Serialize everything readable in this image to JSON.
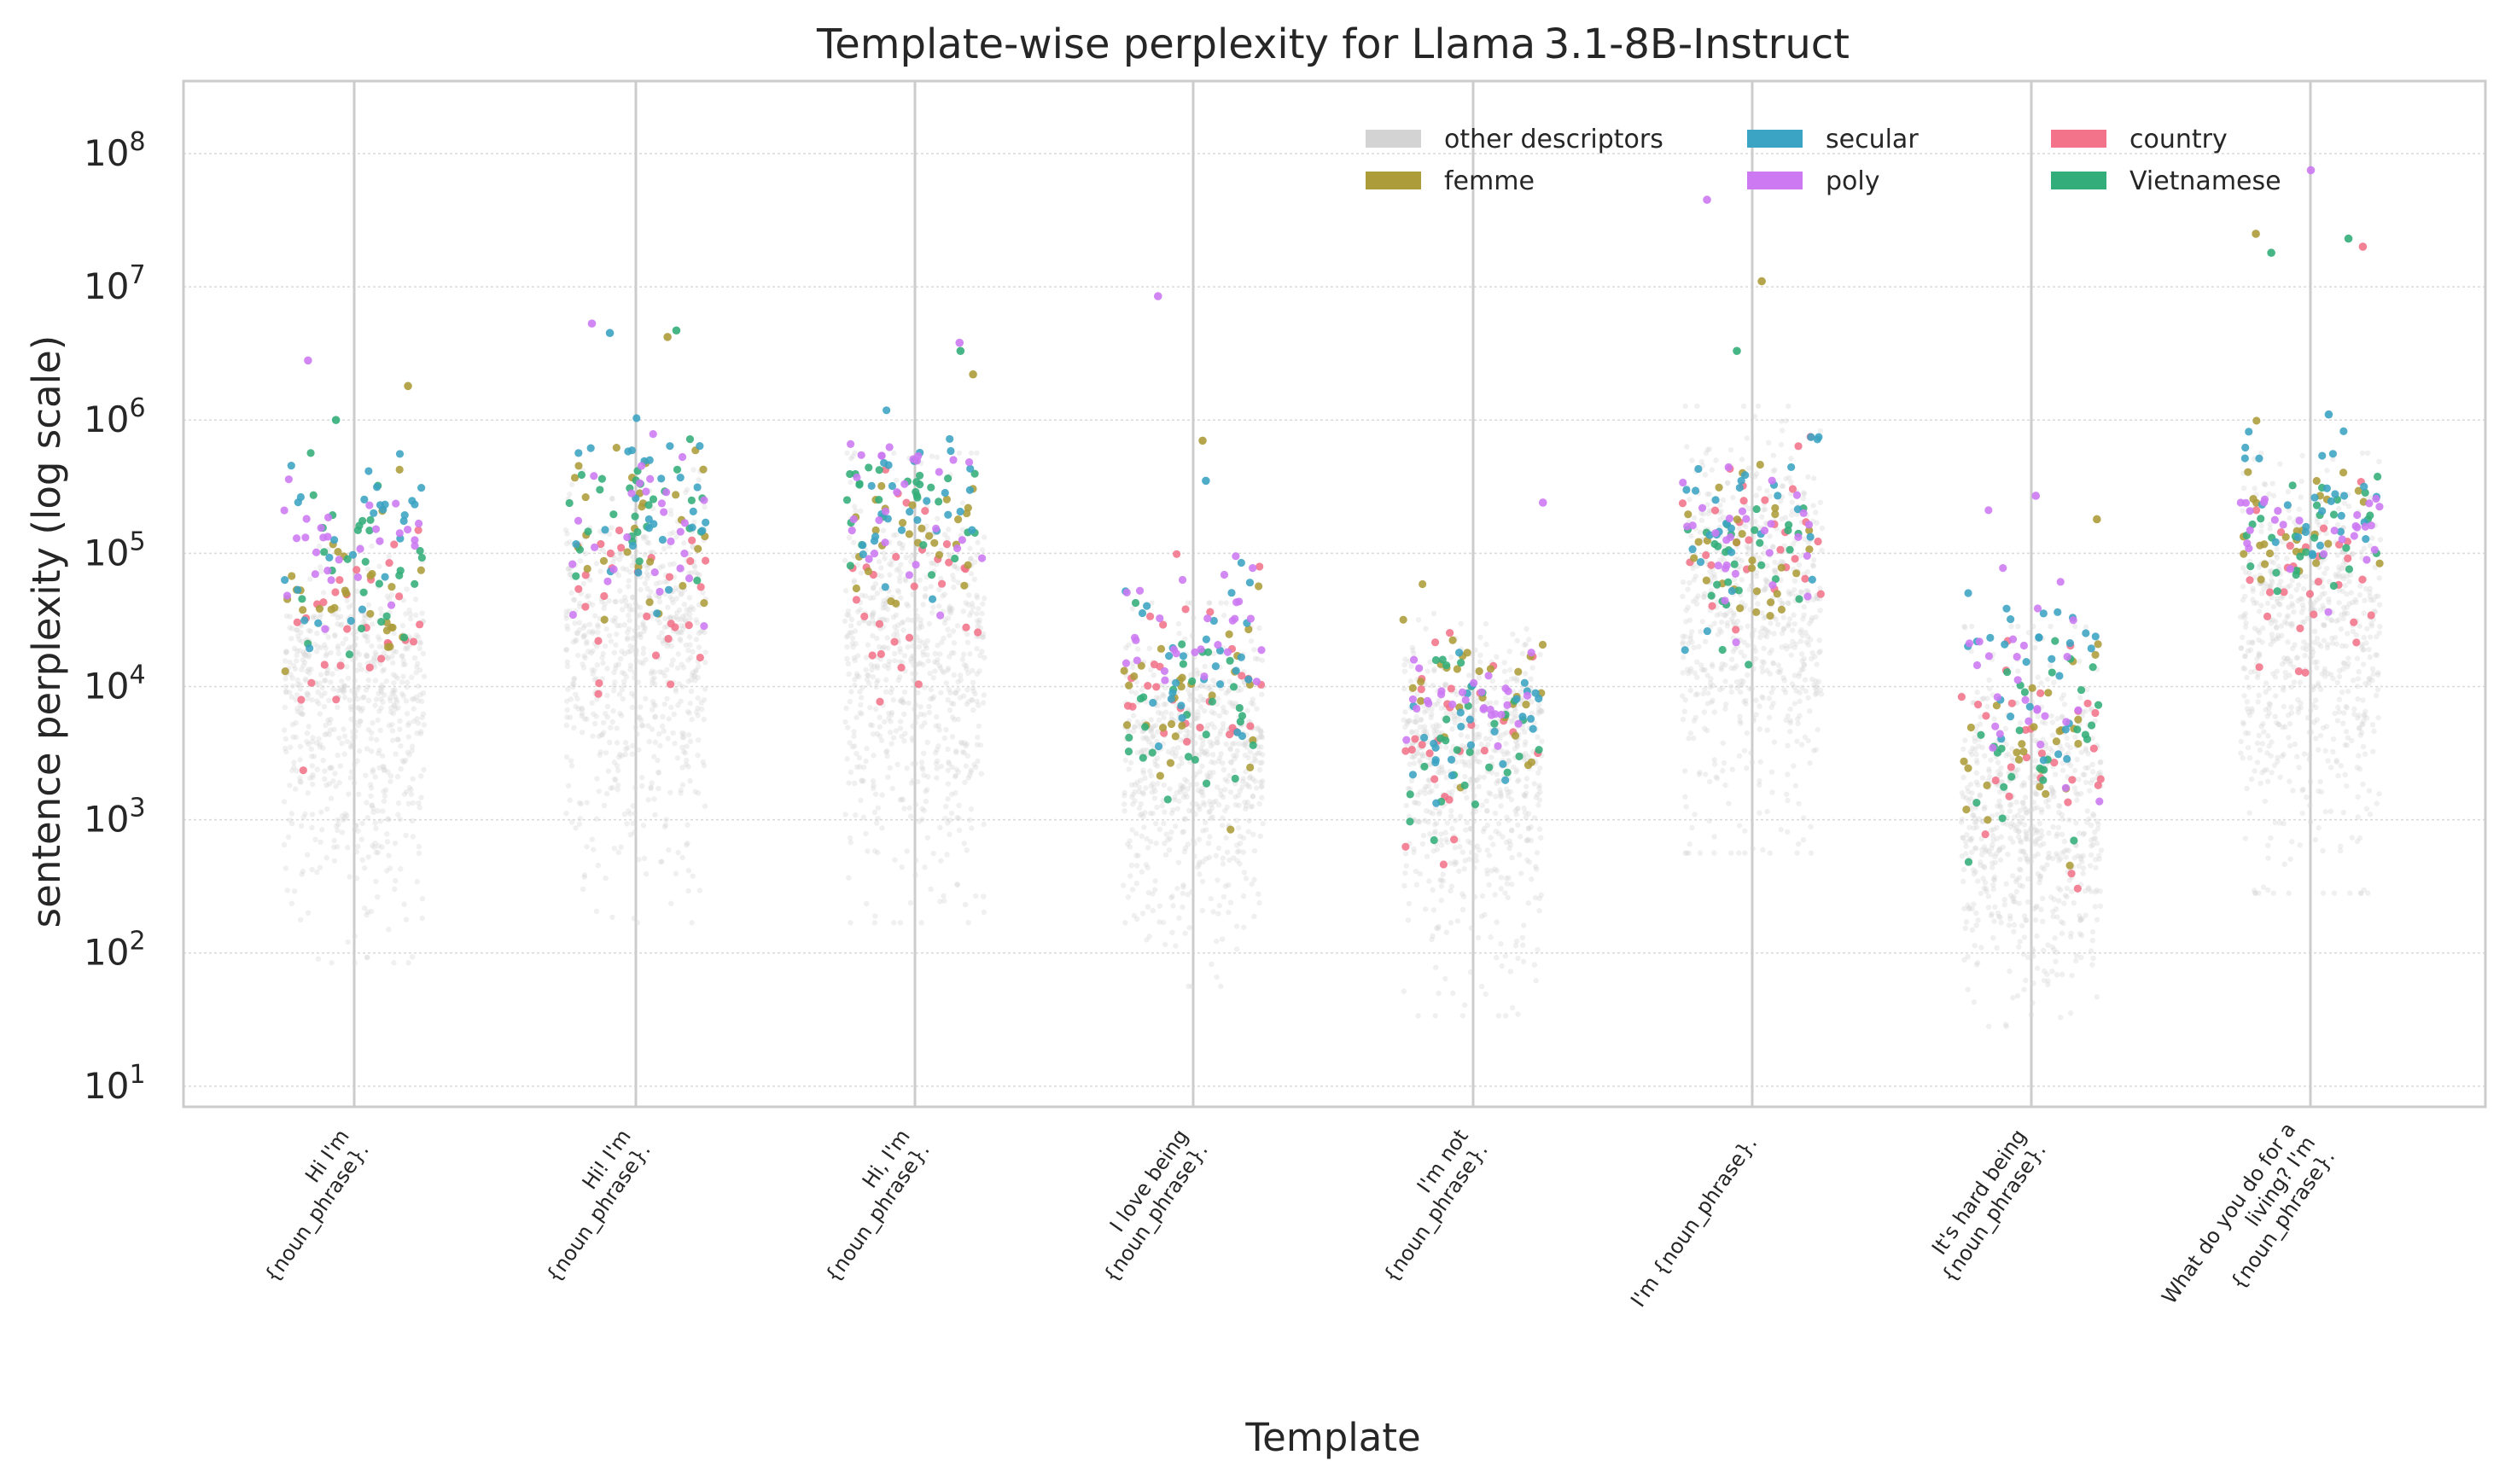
{
  "chart_data": {
    "type": "scatter",
    "title": "Template-wise perplexity for Llama 3.1-8B-Instruct",
    "xlabel": "Template",
    "ylabel": "sentence perplexity (log scale)",
    "yscale": "log",
    "ylim": [
      7,
      350000000
    ],
    "yticks": [
      10,
      100,
      1000,
      10000,
      100000,
      1000000,
      10000000,
      100000000
    ],
    "ytick_labels": [
      {
        "base": "10",
        "exp": "1"
      },
      {
        "base": "10",
        "exp": "2"
      },
      {
        "base": "10",
        "exp": "3"
      },
      {
        "base": "10",
        "exp": "4"
      },
      {
        "base": "10",
        "exp": "5"
      },
      {
        "base": "10",
        "exp": "6"
      },
      {
        "base": "10",
        "exp": "7"
      },
      {
        "base": "10",
        "exp": "8"
      }
    ],
    "grid": true,
    "legend_position": "top-right",
    "categories": [
      [
        "Hi I'm",
        "{noun_phrase}."
      ],
      [
        "Hi! I'm",
        "{noun_phrase}."
      ],
      [
        "Hi, I'm",
        "{noun_phrase}."
      ],
      [
        "I love being",
        "{noun_phrase}."
      ],
      [
        "I'm not",
        "{noun_phrase}."
      ],
      [
        "I'm {noun_phrase}."
      ],
      [
        "It's hard being",
        "{noun_phrase}."
      ],
      [
        "What do you do for a",
        "living? I'm",
        "{noun_phrase}."
      ]
    ],
    "legend": [
      {
        "name": "other descriptors",
        "color": "#d3d3d3"
      },
      {
        "name": "femme",
        "color": "#ad9c3a"
      },
      {
        "name": "secular",
        "color": "#3ba3c3"
      },
      {
        "name": "poly",
        "color": "#cc79f2"
      },
      {
        "name": "country",
        "color": "#f2738a"
      },
      {
        "name": "Vietnamese",
        "color": "#33ae7a"
      }
    ],
    "distributions": [
      {
        "background": {
          "median": 8000,
          "low": 150,
          "high": 80000
        },
        "series": {
          "country": {
            "median": 25000,
            "low": 4000,
            "high": 350000
          },
          "femme": {
            "median": 45000,
            "low": 12000,
            "high": 300000
          },
          "secular": {
            "median": 130000,
            "low": 12000,
            "high": 600000
          },
          "poly": {
            "median": 120000,
            "low": 20000,
            "high": 400000
          },
          "Vietnamese": {
            "median": 90000,
            "low": 13000,
            "high": 400000
          }
        },
        "outliers": [
          {
            "series": "femme",
            "y": 1800000
          },
          {
            "series": "poly",
            "y": 2800000
          },
          {
            "series": "Vietnamese",
            "y": 1000000
          }
        ]
      },
      {
        "background": {
          "median": 20000,
          "low": 300,
          "high": 300000
        },
        "series": {
          "country": {
            "median": 60000,
            "low": 5000,
            "high": 200000
          },
          "femme": {
            "median": 200000,
            "low": 30000,
            "high": 1300000
          },
          "secular": {
            "median": 300000,
            "low": 30000,
            "high": 1600000
          },
          "poly": {
            "median": 200000,
            "low": 30000,
            "high": 800000
          },
          "Vietnamese": {
            "median": 250000,
            "low": 30000,
            "high": 800000
          }
        },
        "outliers": [
          {
            "series": "femme",
            "y": 4200000
          },
          {
            "series": "secular",
            "y": 4500000
          },
          {
            "series": "Vietnamese",
            "y": 4700000
          },
          {
            "series": "poly",
            "y": 5300000
          }
        ]
      },
      {
        "background": {
          "median": 15000,
          "low": 300,
          "high": 400000
        },
        "series": {
          "country": {
            "median": 50000,
            "low": 6000,
            "high": 300000
          },
          "femme": {
            "median": 150000,
            "low": 20000,
            "high": 600000
          },
          "secular": {
            "median": 250000,
            "low": 40000,
            "high": 1500000
          },
          "poly": {
            "median": 250000,
            "low": 30000,
            "high": 800000
          },
          "Vietnamese": {
            "median": 250000,
            "low": 20000,
            "high": 600000
          }
        },
        "outliers": [
          {
            "series": "Vietnamese",
            "y": 3300000
          },
          {
            "series": "poly",
            "y": 3800000
          },
          {
            "series": "femme",
            "y": 2200000
          }
        ]
      },
      {
        "background": {
          "median": 3000,
          "low": 100,
          "high": 30000
        },
        "series": {
          "country": {
            "median": 12000,
            "low": 3000,
            "high": 190000
          },
          "femme": {
            "median": 7000,
            "low": 1500,
            "high": 40000
          },
          "secular": {
            "median": 15000,
            "low": 2000,
            "high": 60000
          },
          "poly": {
            "median": 20000,
            "low": 3000,
            "high": 90000
          },
          "Vietnamese": {
            "median": 6000,
            "low": 700,
            "high": 30000
          }
        },
        "outliers": [
          {
            "series": "femme",
            "y": 700000
          },
          {
            "series": "secular",
            "y": 350000
          },
          {
            "series": "poly",
            "y": 8500000
          }
        ]
      },
      {
        "background": {
          "median": 2500,
          "low": 60,
          "high": 25000
        },
        "series": {
          "country": {
            "median": 4000,
            "low": 600,
            "high": 30000
          },
          "femme": {
            "median": 8000,
            "low": 2000,
            "high": 50000
          },
          "secular": {
            "median": 5000,
            "low": 1000,
            "high": 20000
          },
          "poly": {
            "median": 8000,
            "low": 3000,
            "high": 25000
          },
          "Vietnamese": {
            "median": 4000,
            "low": 500,
            "high": 25000
          }
        },
        "outliers": [
          {
            "series": "poly",
            "y": 240000
          }
        ]
      },
      {
        "background": {
          "median": 35000,
          "low": 1000,
          "high": 900000
        },
        "series": {
          "country": {
            "median": 120000,
            "low": 15000,
            "high": 1100000
          },
          "femme": {
            "median": 100000,
            "low": 15000,
            "high": 600000
          },
          "secular": {
            "median": 200000,
            "low": 20000,
            "high": 1500000
          },
          "poly": {
            "median": 150000,
            "low": 30000,
            "high": 400000
          },
          "Vietnamese": {
            "median": 100000,
            "low": 14000,
            "high": 300000
          }
        },
        "outliers": [
          {
            "series": "femme",
            "y": 11000000
          },
          {
            "series": "poly",
            "y": 45000000
          },
          {
            "series": "Vietnamese",
            "y": 3300000
          }
        ]
      },
      {
        "background": {
          "median": 900,
          "low": 50,
          "high": 20000
        },
        "series": {
          "country": {
            "median": 3000,
            "low": 400,
            "high": 60000
          },
          "femme": {
            "median": 5000,
            "low": 800,
            "high": 200000
          },
          "secular": {
            "median": 20000,
            "low": 700,
            "high": 60000
          },
          "poly": {
            "median": 10000,
            "low": 1000,
            "high": 250000
          },
          "Vietnamese": {
            "median": 2500,
            "low": 300,
            "high": 30000
          }
        },
        "outliers": [
          {
            "series": "poly",
            "y": 270000
          },
          {
            "series": "femme",
            "y": 180000
          }
        ]
      },
      {
        "background": {
          "median": 25000,
          "low": 500,
          "high": 400000
        },
        "series": {
          "country": {
            "median": 60000,
            "low": 8000,
            "high": 300000
          },
          "femme": {
            "median": 150000,
            "low": 50000,
            "high": 700000
          },
          "secular": {
            "median": 200000,
            "low": 60000,
            "high": 1000000
          },
          "poly": {
            "median": 200000,
            "low": 60000,
            "high": 400000
          },
          "Vietnamese": {
            "median": 120000,
            "low": 35000,
            "high": 400000
          }
        },
        "outliers": [
          {
            "series": "country",
            "y": 20000000
          },
          {
            "series": "femme",
            "y": 25000000
          },
          {
            "series": "Vietnamese",
            "y": 18000000
          },
          {
            "series": "Vietnamese",
            "y": 23000000
          },
          {
            "series": "poly",
            "y": 75000000
          },
          {
            "series": "secular",
            "y": 1100000
          }
        ]
      }
    ]
  }
}
